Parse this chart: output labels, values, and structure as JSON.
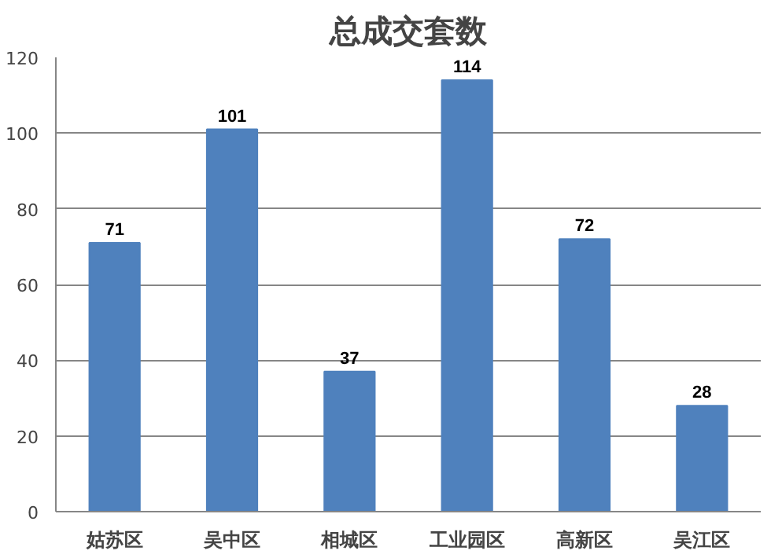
{
  "chart_data": {
    "type": "bar",
    "title": "总成交套数",
    "categories": [
      "姑苏区",
      "吴中区",
      "相城区",
      "工业园区",
      "高新区",
      "吴江区"
    ],
    "values": [
      71,
      101,
      37,
      114,
      72,
      28
    ],
    "color": "#4f81bd",
    "ylim": [
      0,
      120
    ],
    "yticks": [
      0,
      20,
      40,
      60,
      80,
      100,
      120
    ],
    "grid": "y",
    "data_labels": true
  }
}
